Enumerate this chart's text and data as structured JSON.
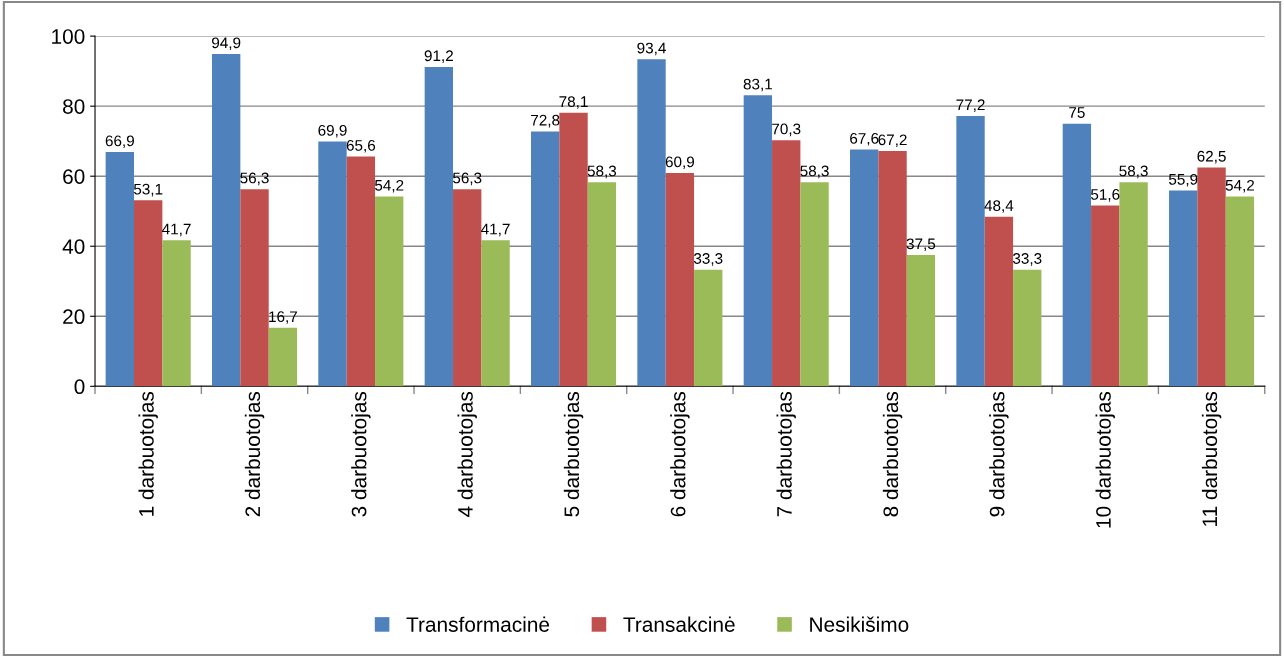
{
  "chart_data": {
    "type": "bar",
    "categories": [
      "1 darbuotojas",
      "2 darbuotojas",
      "3 darbuotojas",
      "4 darbuotojas",
      "5 darbuotojas",
      "6 darbuotojas",
      "7 darbuotojas",
      "8 darbuotojas",
      "9 darbuotojas",
      "10 darbuotojas",
      "11 darbuotojas"
    ],
    "series": [
      {
        "name": "Transformacinė",
        "color": "#4f81bd",
        "values": [
          66.9,
          94.9,
          69.9,
          91.2,
          72.8,
          93.4,
          83.1,
          67.6,
          77.2,
          75,
          55.9
        ],
        "value_labels": [
          "66,9",
          "94,9",
          "69,9",
          "91,2",
          "72,8",
          "93,4",
          "83,1",
          "67,6",
          "77,2",
          "75",
          "55,9"
        ]
      },
      {
        "name": "Transakcinė",
        "color": "#c0504d",
        "values": [
          53.1,
          56.3,
          65.6,
          56.3,
          78.1,
          60.9,
          70.3,
          67.2,
          48.4,
          51.6,
          62.5
        ],
        "value_labels": [
          "53,1",
          "56,3",
          "65,6",
          "56,3",
          "78,1",
          "60,9",
          "70,3",
          "67,2",
          "48,4",
          "51,6",
          "62,5"
        ]
      },
      {
        "name": "Nesikišimo",
        "color": "#9bbb59",
        "values": [
          41.7,
          16.7,
          54.2,
          41.7,
          58.3,
          33.3,
          58.3,
          37.5,
          33.3,
          58.3,
          54.2
        ],
        "value_labels": [
          "41,7",
          "16,7",
          "54,2",
          "41,7",
          "58,3",
          "33,3",
          "58,3",
          "37,5",
          "33,3",
          "58,3",
          "54,2"
        ]
      }
    ],
    "ylim": [
      0,
      100
    ],
    "yticks": [
      0,
      20,
      40,
      60,
      80,
      100
    ],
    "grid": "y",
    "legend": "bottom"
  }
}
